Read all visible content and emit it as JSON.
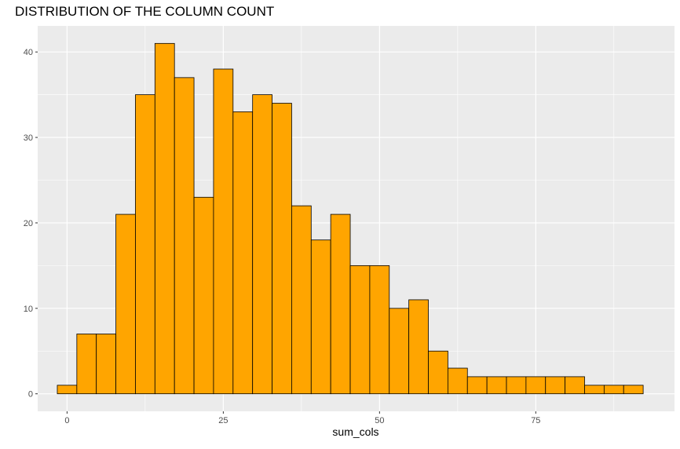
{
  "chart_data": {
    "type": "bar",
    "title": "DISTRIBUTION OF THE COLUMN COUNT",
    "xlabel": "sum_cols",
    "ylabel": "",
    "bin_width": 3.125,
    "bin_centers": [
      0,
      3.125,
      6.25,
      9.375,
      12.5,
      15.625,
      18.75,
      21.875,
      25,
      28.125,
      31.25,
      34.375,
      37.5,
      40.625,
      43.75,
      46.875,
      50,
      53.125,
      56.25,
      59.375,
      62.5,
      65.625,
      68.75,
      71.875,
      75,
      78.125,
      81.25,
      84.375,
      87.5,
      90.625
    ],
    "counts": [
      1,
      7,
      7,
      21,
      35,
      41,
      37,
      23,
      38,
      33,
      35,
      34,
      22,
      18,
      21,
      15,
      15,
      10,
      11,
      5,
      3,
      2,
      2,
      2,
      2,
      2,
      2,
      1,
      1,
      1
    ],
    "x_ticks": [
      0,
      25,
      50,
      75
    ],
    "y_ticks": [
      0,
      10,
      20,
      30,
      40
    ],
    "xlim": [
      -4.7,
      97.2
    ],
    "ylim": [
      -2.05,
      43.05
    ],
    "bar_fill": "#FFA500",
    "bar_outline": "#000000",
    "panel_background": "#EBEBEB",
    "grid": true
  }
}
